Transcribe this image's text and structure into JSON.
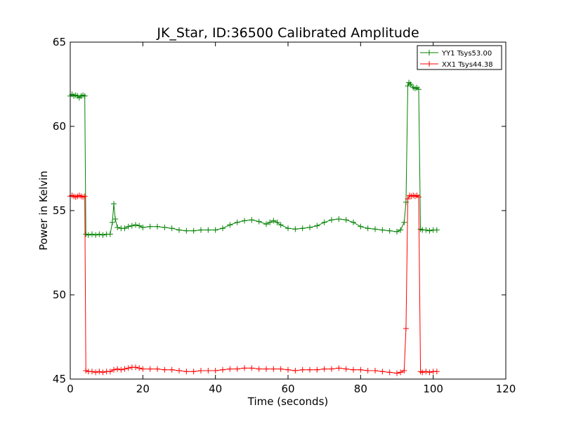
{
  "chart_data": {
    "type": "line",
    "title": "JK_Star, ID:36500 Calibrated Amplitude",
    "xlabel": "Time (seconds)",
    "ylabel": "Power in Kelvin",
    "xlim": [
      0,
      120
    ],
    "ylim": [
      45,
      65
    ],
    "xticks": [
      0,
      20,
      40,
      60,
      80,
      100,
      120
    ],
    "yticks": [
      45,
      50,
      55,
      60,
      65
    ],
    "grid": false,
    "legend_position": "top-right",
    "marker": "+",
    "series": [
      {
        "name": "YY1 Tsys53.00",
        "color": "#008000",
        "points": [
          [
            0.0,
            61.8
          ],
          [
            0.5,
            61.9
          ],
          [
            1.0,
            61.8
          ],
          [
            1.5,
            61.85
          ],
          [
            2.0,
            61.8
          ],
          [
            2.5,
            61.7
          ],
          [
            3.0,
            61.8
          ],
          [
            3.5,
            61.85
          ],
          [
            4.0,
            61.8
          ],
          [
            4.3,
            53.6
          ],
          [
            5.0,
            53.55
          ],
          [
            6.0,
            53.6
          ],
          [
            7.0,
            53.55
          ],
          [
            8.0,
            53.6
          ],
          [
            9.0,
            53.55
          ],
          [
            10.0,
            53.6
          ],
          [
            11.0,
            53.6
          ],
          [
            11.6,
            54.3
          ],
          [
            12.0,
            55.4
          ],
          [
            12.4,
            54.5
          ],
          [
            13.0,
            54.0
          ],
          [
            14.0,
            53.95
          ],
          [
            15.0,
            53.95
          ],
          [
            16.0,
            54.05
          ],
          [
            17.0,
            54.1
          ],
          [
            18.0,
            54.15
          ],
          [
            19.0,
            54.1
          ],
          [
            20.0,
            54.0
          ],
          [
            22.0,
            54.05
          ],
          [
            24.0,
            54.05
          ],
          [
            26.0,
            54.0
          ],
          [
            28.0,
            53.95
          ],
          [
            30.0,
            53.85
          ],
          [
            32.0,
            53.8
          ],
          [
            34.0,
            53.8
          ],
          [
            36.0,
            53.85
          ],
          [
            38.0,
            53.85
          ],
          [
            40.0,
            53.85
          ],
          [
            42.0,
            53.95
          ],
          [
            44.0,
            54.15
          ],
          [
            46.0,
            54.3
          ],
          [
            48.0,
            54.4
          ],
          [
            50.0,
            54.45
          ],
          [
            52.0,
            54.35
          ],
          [
            54.0,
            54.2
          ],
          [
            55.0,
            54.3
          ],
          [
            56.0,
            54.4
          ],
          [
            57.0,
            54.3
          ],
          [
            58.0,
            54.15
          ],
          [
            60.0,
            53.95
          ],
          [
            62.0,
            53.9
          ],
          [
            64.0,
            53.95
          ],
          [
            66.0,
            54.0
          ],
          [
            68.0,
            54.1
          ],
          [
            70.0,
            54.3
          ],
          [
            72.0,
            54.45
          ],
          [
            74.0,
            54.5
          ],
          [
            76.0,
            54.45
          ],
          [
            78.0,
            54.3
          ],
          [
            80.0,
            54.05
          ],
          [
            82.0,
            53.95
          ],
          [
            84.0,
            53.9
          ],
          [
            86.0,
            53.85
          ],
          [
            88.0,
            53.8
          ],
          [
            90.0,
            53.75
          ],
          [
            91.0,
            53.85
          ],
          [
            92.0,
            54.3
          ],
          [
            92.5,
            55.5
          ],
          [
            93.0,
            62.4
          ],
          [
            93.3,
            62.6
          ],
          [
            93.8,
            62.5
          ],
          [
            94.5,
            62.3
          ],
          [
            95.0,
            62.25
          ],
          [
            95.5,
            62.3
          ],
          [
            96.0,
            62.2
          ],
          [
            96.5,
            53.9
          ],
          [
            97.0,
            53.85
          ],
          [
            98.0,
            53.85
          ],
          [
            99.0,
            53.8
          ],
          [
            100.0,
            53.85
          ],
          [
            101.0,
            53.85
          ]
        ]
      },
      {
        "name": "XX1 Tsys44.38",
        "color": "#ff0000",
        "points": [
          [
            0.0,
            55.85
          ],
          [
            0.5,
            55.9
          ],
          [
            1.0,
            55.85
          ],
          [
            1.5,
            55.8
          ],
          [
            2.0,
            55.85
          ],
          [
            2.5,
            55.9
          ],
          [
            3.0,
            55.85
          ],
          [
            3.5,
            55.8
          ],
          [
            4.0,
            55.85
          ],
          [
            4.3,
            45.5
          ],
          [
            5.0,
            45.45
          ],
          [
            6.0,
            45.45
          ],
          [
            7.0,
            45.4
          ],
          [
            8.0,
            45.45
          ],
          [
            9.0,
            45.4
          ],
          [
            10.0,
            45.45
          ],
          [
            11.0,
            45.45
          ],
          [
            12.0,
            45.55
          ],
          [
            13.0,
            45.6
          ],
          [
            14.0,
            45.55
          ],
          [
            15.0,
            45.6
          ],
          [
            16.0,
            45.65
          ],
          [
            17.0,
            45.7
          ],
          [
            18.0,
            45.7
          ],
          [
            19.0,
            45.65
          ],
          [
            20.0,
            45.6
          ],
          [
            22.0,
            45.6
          ],
          [
            24.0,
            45.6
          ],
          [
            26.0,
            45.55
          ],
          [
            28.0,
            45.55
          ],
          [
            30.0,
            45.5
          ],
          [
            32.0,
            45.45
          ],
          [
            34.0,
            45.45
          ],
          [
            36.0,
            45.5
          ],
          [
            38.0,
            45.5
          ],
          [
            40.0,
            45.5
          ],
          [
            42.0,
            45.55
          ],
          [
            44.0,
            45.6
          ],
          [
            46.0,
            45.6
          ],
          [
            48.0,
            45.65
          ],
          [
            50.0,
            45.65
          ],
          [
            52.0,
            45.6
          ],
          [
            54.0,
            45.6
          ],
          [
            56.0,
            45.6
          ],
          [
            58.0,
            45.6
          ],
          [
            60.0,
            45.55
          ],
          [
            62.0,
            45.5
          ],
          [
            64.0,
            45.55
          ],
          [
            66.0,
            45.55
          ],
          [
            68.0,
            45.55
          ],
          [
            70.0,
            45.6
          ],
          [
            72.0,
            45.6
          ],
          [
            74.0,
            45.65
          ],
          [
            76.0,
            45.6
          ],
          [
            78.0,
            45.55
          ],
          [
            80.0,
            45.55
          ],
          [
            82.0,
            45.5
          ],
          [
            84.0,
            45.5
          ],
          [
            86.0,
            45.45
          ],
          [
            88.0,
            45.4
          ],
          [
            90.0,
            45.35
          ],
          [
            91.0,
            45.4
          ],
          [
            92.0,
            45.5
          ],
          [
            92.5,
            48.0
          ],
          [
            93.0,
            55.7
          ],
          [
            93.5,
            55.9
          ],
          [
            94.0,
            55.85
          ],
          [
            94.5,
            55.9
          ],
          [
            95.0,
            55.85
          ],
          [
            95.5,
            55.9
          ],
          [
            96.0,
            55.8
          ],
          [
            96.5,
            45.45
          ],
          [
            97.0,
            45.4
          ],
          [
            98.0,
            45.45
          ],
          [
            99.0,
            45.4
          ],
          [
            100.0,
            45.45
          ],
          [
            101.0,
            45.45
          ]
        ]
      }
    ]
  }
}
